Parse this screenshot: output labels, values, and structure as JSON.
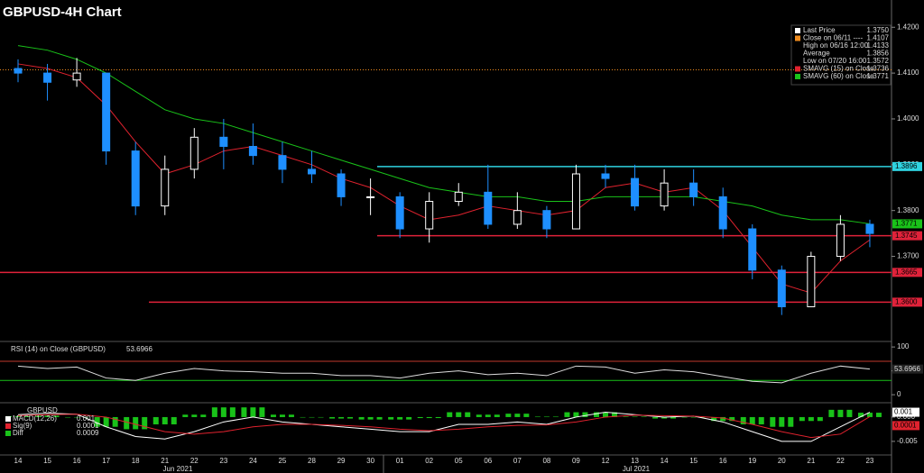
{
  "chart_data": {
    "type": "candlestick",
    "title": "GBPUSD-4H Chart",
    "categories": [
      "14",
      "15",
      "16",
      "17",
      "18",
      "21",
      "22",
      "23",
      "24",
      "25",
      "28",
      "29",
      "30",
      "01",
      "02",
      "05",
      "06",
      "07",
      "08",
      "09",
      "12",
      "13",
      "14",
      "15",
      "16",
      "19",
      "20",
      "21",
      "22",
      "23"
    ],
    "x_groups": [
      "Jun 2021",
      "Jul 2021"
    ],
    "open": [
      1.411,
      1.41,
      1.4085,
      1.41,
      1.393,
      1.381,
      1.389,
      1.396,
      1.394,
      1.392,
      1.389,
      1.388,
      1.383,
      1.383,
      1.376,
      1.382,
      1.384,
      1.377,
      1.38,
      1.376,
      1.388,
      1.387,
      1.381,
      1.386,
      1.383,
      1.376,
      1.367,
      1.359,
      1.37,
      1.377
    ],
    "high": [
      1.413,
      1.412,
      1.4133,
      1.41,
      1.395,
      1.392,
      1.398,
      1.4,
      1.399,
      1.395,
      1.393,
      1.389,
      1.387,
      1.384,
      1.384,
      1.386,
      1.39,
      1.384,
      1.381,
      1.39,
      1.39,
      1.39,
      1.389,
      1.389,
      1.385,
      1.377,
      1.368,
      1.371,
      1.379,
      1.378
    ],
    "low": [
      1.408,
      1.404,
      1.407,
      1.39,
      1.379,
      1.379,
      1.387,
      1.389,
      1.39,
      1.386,
      1.386,
      1.381,
      1.379,
      1.374,
      1.373,
      1.381,
      1.376,
      1.376,
      1.374,
      1.376,
      1.385,
      1.38,
      1.38,
      1.381,
      1.374,
      1.365,
      1.3572,
      1.359,
      1.369,
      1.372
    ],
    "close": [
      1.41,
      1.408,
      1.41,
      1.393,
      1.381,
      1.389,
      1.396,
      1.394,
      1.392,
      1.389,
      1.388,
      1.383,
      1.383,
      1.376,
      1.382,
      1.384,
      1.377,
      1.38,
      1.376,
      1.388,
      1.387,
      1.381,
      1.386,
      1.383,
      1.376,
      1.367,
      1.359,
      1.37,
      1.377,
      1.375
    ],
    "up_color": "#ffffff",
    "down_color": "#1e8fff",
    "series": [
      {
        "name": "SMAVG (15)  on Close",
        "color": "#e0222e",
        "values": [
          1.412,
          1.411,
          1.409,
          1.403,
          1.395,
          1.388,
          1.39,
          1.393,
          1.394,
          1.392,
          1.39,
          1.387,
          1.385,
          1.381,
          1.378,
          1.379,
          1.381,
          1.38,
          1.379,
          1.38,
          1.385,
          1.386,
          1.384,
          1.385,
          1.38,
          1.372,
          1.364,
          1.362,
          1.369,
          1.3736
        ]
      },
      {
        "name": "SMAVG (60)  on Close",
        "color": "#19c219",
        "values": [
          1.416,
          1.415,
          1.413,
          1.41,
          1.406,
          1.402,
          1.4,
          1.399,
          1.397,
          1.395,
          1.393,
          1.391,
          1.389,
          1.387,
          1.385,
          1.384,
          1.383,
          1.383,
          1.382,
          1.382,
          1.383,
          1.383,
          1.383,
          1.383,
          1.382,
          1.381,
          1.379,
          1.378,
          1.378,
          1.3771
        ]
      }
    ],
    "ylim": [
      1.353,
      1.423
    ],
    "yticks": [
      {
        "value": 1.42,
        "label": "1.4200"
      },
      {
        "value": 1.41,
        "label": "1.4100"
      },
      {
        "value": 1.4,
        "label": "1.4000"
      },
      {
        "value": 1.39,
        "label": "1.3900"
      },
      {
        "value": 1.38,
        "label": "1.3800"
      },
      {
        "value": 1.37,
        "label": "1.3700"
      }
    ],
    "levels": [
      {
        "value": 1.3896,
        "label": "1.3896",
        "color": "#2fd3e0"
      },
      {
        "value": 1.3745,
        "label": "1.3745",
        "color": "#e0223a"
      },
      {
        "value": 1.3665,
        "label": "1.3665",
        "color": "#e0223a"
      },
      {
        "value": 1.36,
        "label": "1.3600",
        "color": "#e0223a"
      }
    ],
    "sma_tag": {
      "value": 1.3771,
      "label": "1.3771"
    },
    "legend": [
      {
        "name": "Last Price",
        "value": {
          "value": 1.375,
          "label": "1.3750"
        },
        "color": "#ffffff"
      },
      {
        "name": "Close on 06/11 ----",
        "value": {
          "value": 1.4107,
          "label": "1.4107"
        },
        "color": "#f08c1e"
      },
      {
        "name": "High on 06/16 12:00",
        "value": {
          "value": 1.4133,
          "label": "1.4133"
        }
      },
      {
        "name": "Average",
        "value": {
          "value": 1.3856,
          "label": "1.3856"
        }
      },
      {
        "name": "Low on 07/20 16:00",
        "value": {
          "value": 1.3572,
          "label": "1.3572"
        }
      },
      {
        "name": "SMAVG (15)  on Close",
        "value": {
          "value": 1.3736,
          "label": "1.3736"
        },
        "color": "#e0222e"
      },
      {
        "name": "SMAVG (60)  on Close",
        "value": {
          "value": 1.3771,
          "label": "1.3771"
        },
        "color": "#19c219"
      }
    ],
    "rsi": {
      "name": "RSI (14) on Close (GBPUSD)",
      "last": 53.6966,
      "color": "#dddddd",
      "ylim": [
        -13,
        104
      ],
      "yticks": [
        100,
        50,
        0
      ],
      "levels": [
        70,
        30
      ],
      "values": [
        60,
        55,
        58,
        35,
        30,
        45,
        55,
        50,
        48,
        45,
        45,
        40,
        40,
        35,
        45,
        50,
        42,
        45,
        40,
        60,
        58,
        45,
        52,
        48,
        38,
        28,
        25,
        45,
        60,
        53.6966
      ]
    },
    "macd": {
      "name": "GBPUSD",
      "ylim": [
        -0.0078,
        0.0024
      ],
      "yticks": [
        {
          "value": 0,
          "label": "0.000"
        },
        {
          "value": -0.005,
          "label": "-0.005"
        }
      ],
      "series": [
        {
          "name": "MACD(12,26)",
          "last": 0.001,
          "color": "#ffffff",
          "values": [
            0.0005,
            0.0008,
            0.0006,
            -0.002,
            -0.004,
            -0.0045,
            -0.003,
            -0.001,
            0,
            -0.001,
            -0.0015,
            -0.002,
            -0.0025,
            -0.003,
            -0.003,
            -0.0015,
            -0.0015,
            -0.001,
            -0.0015,
            0,
            0.001,
            0.0005,
            0,
            0.0002,
            -0.001,
            -0.003,
            -0.005,
            -0.005,
            -0.002,
            0.001
          ]
        },
        {
          "name": "Sig(9)",
          "last": 0.0001,
          "color": "#e0222e",
          "values": [
            0.0003,
            0.0005,
            0.0006,
            0,
            -0.0015,
            -0.003,
            -0.0035,
            -0.003,
            -0.002,
            -0.0015,
            -0.0015,
            -0.0017,
            -0.002,
            -0.0025,
            -0.0028,
            -0.0025,
            -0.002,
            -0.0017,
            -0.0016,
            -0.001,
            0,
            0.0004,
            0.0003,
            0.0002,
            -0.0002,
            -0.0015,
            -0.003,
            -0.0042,
            -0.0035,
            0.0001
          ]
        },
        {
          "name": "Diff",
          "last": 0.0009,
          "color": "#19c219",
          "values": [
            0.0002,
            0.0003,
            0,
            -0.002,
            -0.0025,
            -0.0015,
            0.0005,
            0.002,
            0.002,
            0.0005,
            0,
            -0.0003,
            -0.0005,
            -0.0005,
            -0.0002,
            0.001,
            0.0005,
            0.0007,
            0.0001,
            0.001,
            0.001,
            0.0001,
            -0.0003,
            0,
            -0.0008,
            -0.0015,
            -0.002,
            -0.0008,
            0.0015,
            0.0009
          ]
        }
      ]
    }
  }
}
